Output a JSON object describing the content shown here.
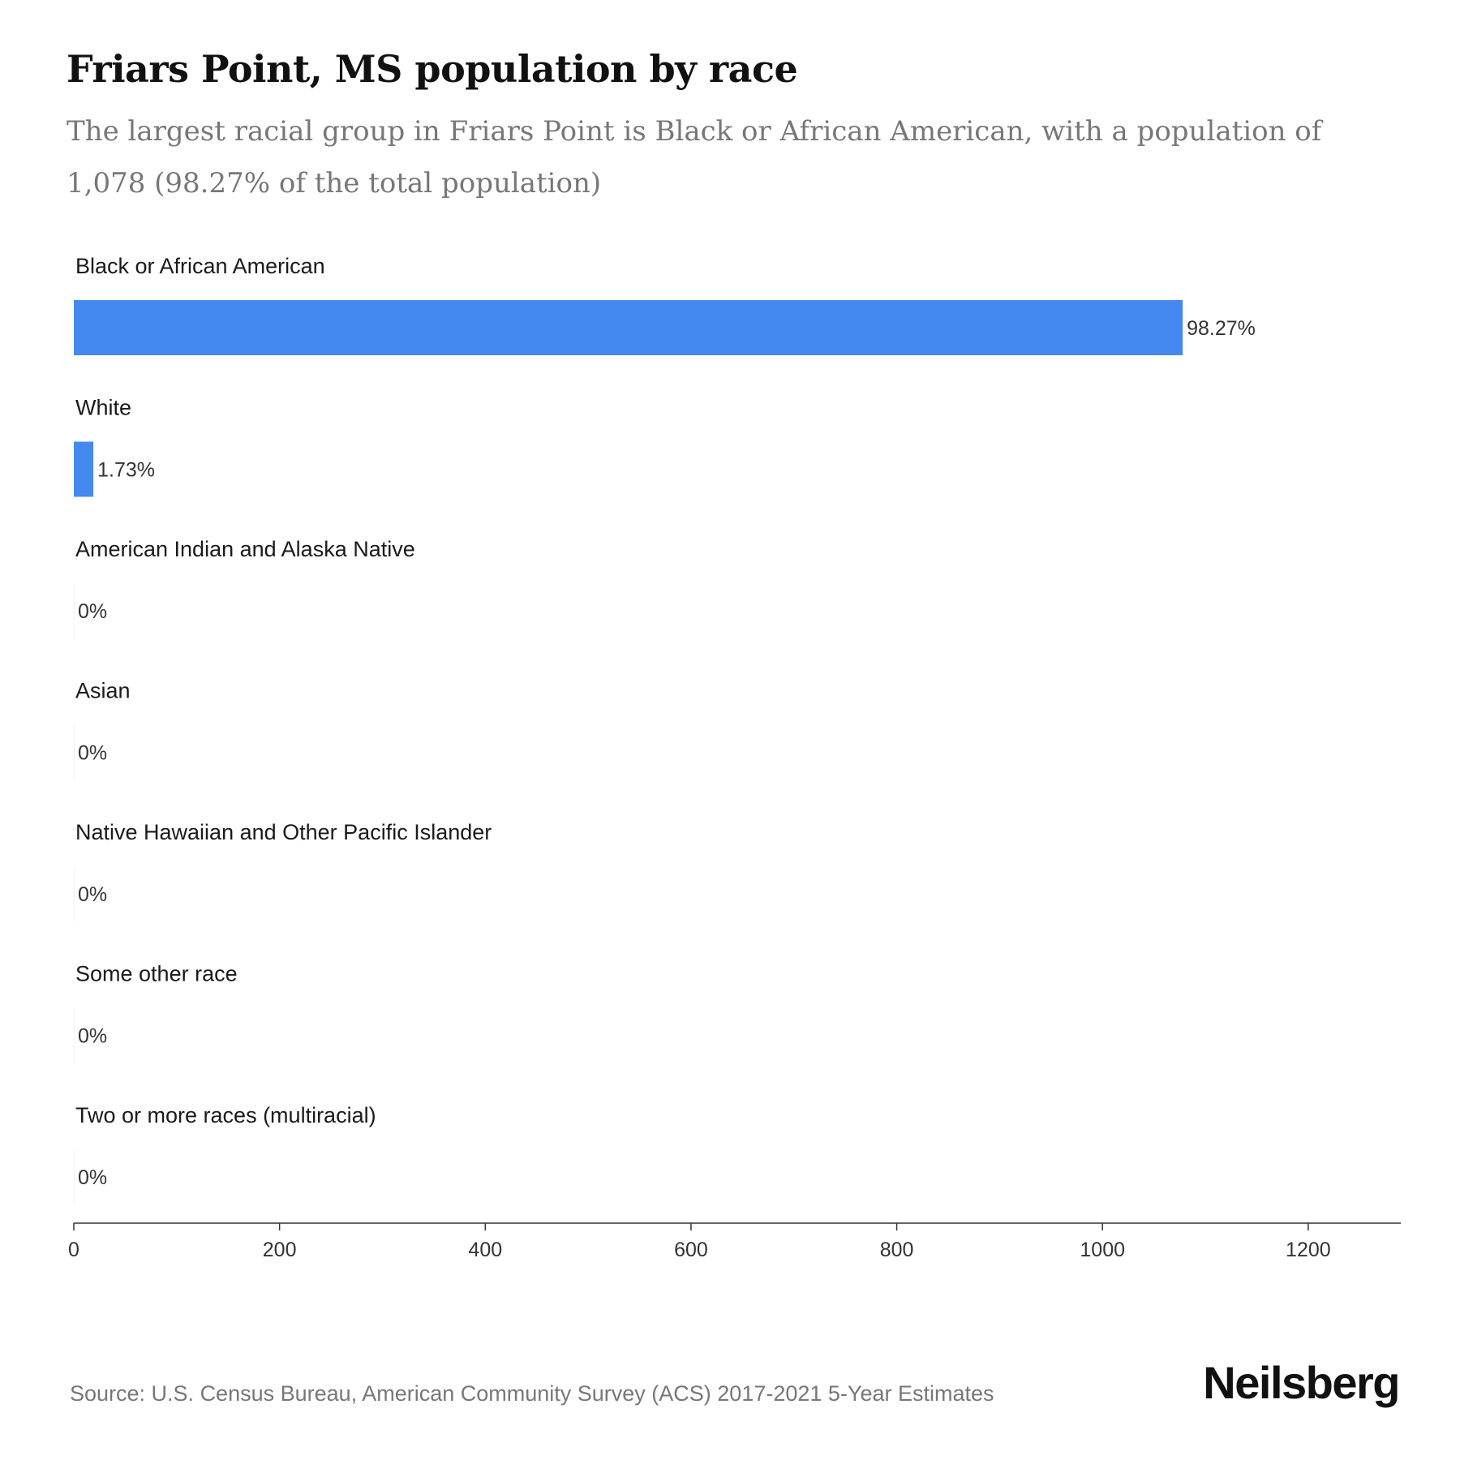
{
  "header": {
    "title": "Friars Point, MS population by race",
    "subtitle": "The largest racial group in Friars Point is Black or African American, with a population of 1,078 (98.27% of the total population)"
  },
  "footer": {
    "source": "Source: U.S. Census Bureau, American Community Survey (ACS) 2017-2021 5-Year Estimates",
    "brand": "Neilsberg"
  },
  "colors": {
    "bar": "#4589F0",
    "axis": "#333333"
  },
  "chart_data": {
    "type": "bar",
    "orientation": "horizontal",
    "categories": [
      "Black or African American",
      "White",
      "American Indian and Alaska Native",
      "Asian",
      "Native Hawaiian and Other Pacific Islander",
      "Some other race",
      "Two or more races (multiracial)"
    ],
    "values": [
      1078,
      19,
      0,
      0,
      0,
      0,
      0
    ],
    "value_labels": [
      "98.27%",
      "1.73%",
      "0%",
      "0%",
      "0%",
      "0%",
      "0%"
    ],
    "xlim": [
      0,
      1290
    ],
    "xticks": [
      0,
      200,
      400,
      600,
      800,
      1000,
      1200
    ],
    "grid": false,
    "legend": "none"
  }
}
